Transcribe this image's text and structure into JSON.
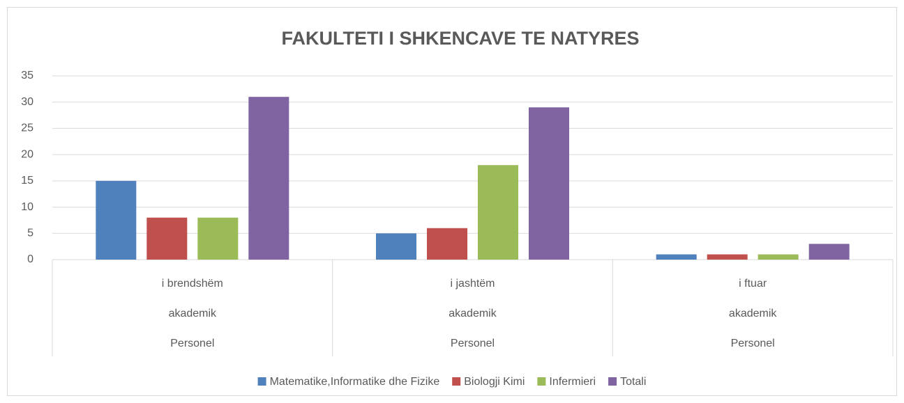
{
  "chart_data": {
    "type": "bar",
    "title": "FAKULTETI  I SHKENCAVE TE NATYRES",
    "categories": [
      [
        "i brendshëm",
        "akademik",
        "Personel"
      ],
      [
        "i jashtëm",
        "akademik",
        "Personel"
      ],
      [
        "i ftuar",
        "akademik",
        "Personel"
      ]
    ],
    "series": [
      {
        "name": "Matematike,Informatike dhe Fizike",
        "color": "#4f81bd",
        "values": [
          15,
          5,
          1
        ]
      },
      {
        "name": "Biologji Kimi",
        "color": "#c0504d",
        "values": [
          8,
          6,
          1
        ]
      },
      {
        "name": "Infermieri",
        "color": "#9bbb59",
        "values": [
          8,
          18,
          1
        ]
      },
      {
        "name": "Totali",
        "color": "#8064a2",
        "values": [
          31,
          29,
          3
        ]
      }
    ],
    "ylim": [
      0,
      35
    ],
    "yticks": [
      0,
      5,
      10,
      15,
      20,
      25,
      30,
      35
    ],
    "grid": true,
    "legend": "bottom"
  }
}
